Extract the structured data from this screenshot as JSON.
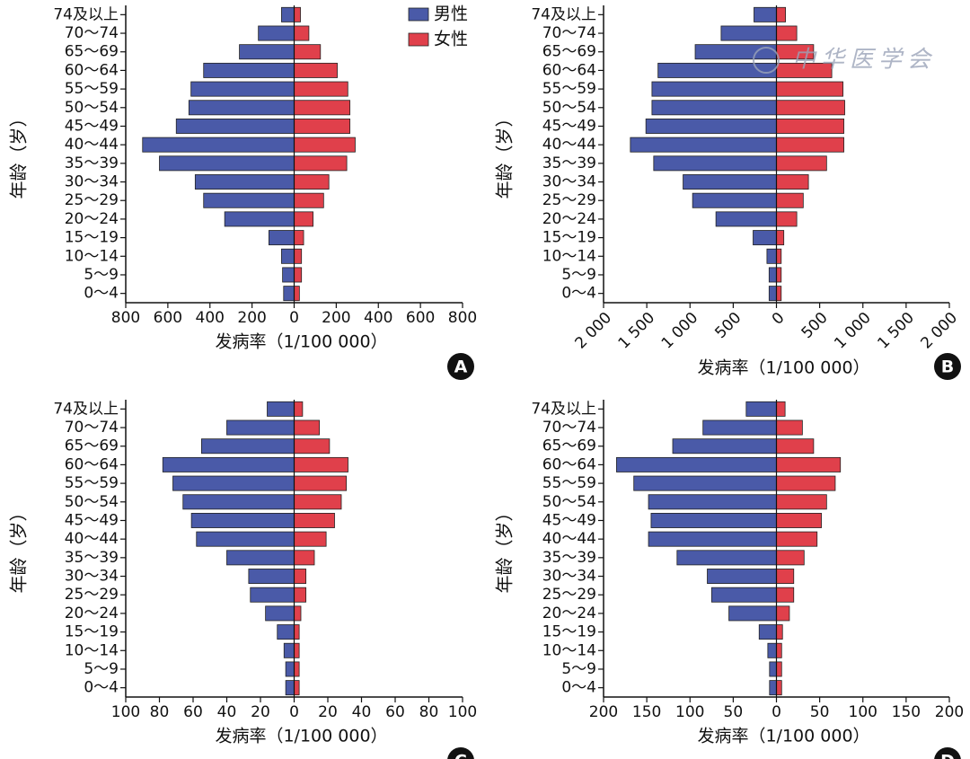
{
  "chart_data": [
    {
      "type": "pyramid",
      "panel": "A",
      "xlabel": "发病率（1/100 000）",
      "ylabel": "年龄（岁）",
      "categories": [
        "74及以上",
        "70～74",
        "65～69",
        "60～64",
        "55～59",
        "50～54",
        "45～49",
        "40～44",
        "35～39",
        "30～34",
        "25～29",
        "20～24",
        "15～19",
        "10～14",
        "5～9",
        "0～4"
      ],
      "series": [
        {
          "name": "男性",
          "color": "#4a5aa8",
          "values": [
            60,
            170,
            260,
            430,
            490,
            500,
            560,
            720,
            640,
            470,
            430,
            330,
            120,
            60,
            55,
            50
          ]
        },
        {
          "name": "女性",
          "color": "#e0404b",
          "values": [
            30,
            70,
            125,
            205,
            255,
            265,
            265,
            290,
            250,
            165,
            140,
            90,
            45,
            35,
            35,
            25
          ]
        }
      ],
      "xlim": [
        -800,
        800
      ],
      "xticks": [
        {
          "value": -800,
          "label": "800"
        },
        {
          "value": -600,
          "label": "600"
        },
        {
          "value": -400,
          "label": "400"
        },
        {
          "value": -200,
          "label": "200"
        },
        0,
        200,
        400,
        600,
        800
      ],
      "legend_position": "top-right"
    },
    {
      "type": "pyramid",
      "panel": "B",
      "xlabel": "发病率（1/100 000）",
      "ylabel": "年龄（岁）",
      "watermark": "中华医学会",
      "categories": [
        "74及以上",
        "70～74",
        "65～69",
        "60～64",
        "55～59",
        "50～54",
        "45～49",
        "40～44",
        "35～39",
        "30～34",
        "25～29",
        "20～24",
        "15～19",
        "10～14",
        "5～9",
        "0～4"
      ],
      "series": [
        {
          "name": "男性",
          "color": "#4a5aa8",
          "values": [
            260,
            640,
            940,
            1370,
            1440,
            1440,
            1510,
            1690,
            1420,
            1080,
            970,
            700,
            270,
            110,
            85,
            85
          ]
        },
        {
          "name": "女性",
          "color": "#e0404b",
          "values": [
            105,
            235,
            430,
            640,
            770,
            790,
            780,
            780,
            580,
            370,
            310,
            235,
            85,
            55,
            55,
            55
          ]
        }
      ],
      "xlim": [
        -2000,
        2000
      ],
      "xticks": [
        {
          "value": -2000,
          "label": "2 000"
        },
        {
          "value": -1500,
          "label": "1 500"
        },
        {
          "value": -1000,
          "label": "1 000"
        },
        {
          "value": -500,
          "label": "500"
        },
        0,
        500,
        {
          "value": 1000,
          "label": "1 000"
        },
        {
          "value": 1500,
          "label": "1 500"
        },
        {
          "value": 2000,
          "label": "2 000"
        }
      ],
      "xtick_rotation": -45
    },
    {
      "type": "pyramid",
      "panel": "C",
      "xlabel": "发病率（1/100 000）",
      "ylabel": "年龄（岁）",
      "categories": [
        "74及以上",
        "70～74",
        "65～69",
        "60～64",
        "55～59",
        "50～54",
        "45～49",
        "40～44",
        "35～39",
        "30～34",
        "25～29",
        "20～24",
        "15～19",
        "10～14",
        "5～9",
        "0～4"
      ],
      "series": [
        {
          "name": "男性",
          "color": "#4a5aa8",
          "values": [
            16,
            40,
            55,
            78,
            72,
            66,
            61,
            58,
            40,
            27,
            26,
            17,
            10,
            6,
            5,
            5
          ]
        },
        {
          "name": "女性",
          "color": "#e0404b",
          "values": [
            5,
            15,
            21,
            32,
            31,
            28,
            24,
            19,
            12,
            7,
            7,
            4,
            3,
            3,
            3,
            3
          ]
        }
      ],
      "xlim": [
        -100,
        100
      ],
      "xticks": [
        {
          "value": -100,
          "label": "100"
        },
        {
          "value": -80,
          "label": "80"
        },
        {
          "value": -60,
          "label": "60"
        },
        {
          "value": -40,
          "label": "40"
        },
        {
          "value": -20,
          "label": "20"
        },
        0,
        20,
        40,
        60,
        80,
        100
      ]
    },
    {
      "type": "pyramid",
      "panel": "D",
      "xlabel": "发病率（1/100 000）",
      "ylabel": "年龄（岁）",
      "categories": [
        "74及以上",
        "70～74",
        "65～69",
        "60～64",
        "55～59",
        "50～54",
        "45～49",
        "40～44",
        "35～39",
        "30～34",
        "25～29",
        "20～24",
        "15～19",
        "10～14",
        "5～9",
        "0～4"
      ],
      "series": [
        {
          "name": "男性",
          "color": "#4a5aa8",
          "values": [
            35,
            85,
            120,
            185,
            165,
            148,
            145,
            148,
            115,
            80,
            75,
            55,
            20,
            10,
            8,
            8
          ]
        },
        {
          "name": "女性",
          "color": "#e0404b",
          "values": [
            10,
            30,
            43,
            74,
            68,
            58,
            52,
            47,
            32,
            20,
            20,
            15,
            7,
            6,
            6,
            6
          ]
        }
      ],
      "xlim": [
        -200,
        200
      ],
      "xticks": [
        {
          "value": -200,
          "label": "200"
        },
        {
          "value": -150,
          "label": "150"
        },
        {
          "value": -100,
          "label": "100"
        },
        {
          "value": -50,
          "label": "50"
        },
        0,
        50,
        100,
        150,
        200
      ]
    }
  ]
}
